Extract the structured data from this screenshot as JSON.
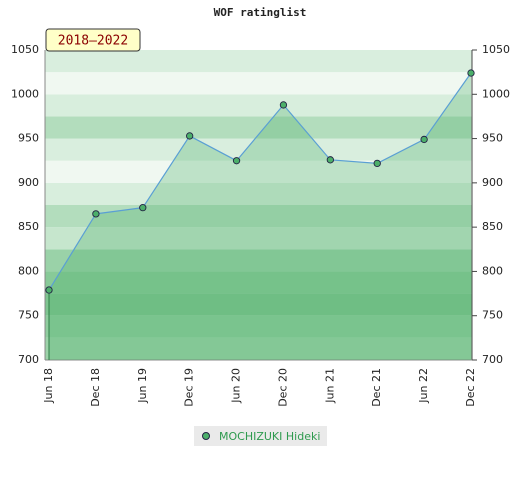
{
  "chart_data": {
    "type": "line",
    "title": "WOF ratinglist",
    "badge": "2018–2022",
    "categories": [
      "Jun 18",
      "Dec 18",
      "Jun 19",
      "Dec 19",
      "Jun 20",
      "Dec 20",
      "Jun 21",
      "Dec 21",
      "Jun 22",
      "Dec 22"
    ],
    "series": [
      {
        "name": "MOCHIZUKI Hideki",
        "color": "#5a9fd4",
        "values": [
          779,
          865,
          872,
          953,
          925,
          988,
          926,
          922,
          949,
          1024
        ]
      }
    ],
    "ylim": [
      700,
      1050
    ],
    "yticks": [
      700,
      750,
      800,
      850,
      900,
      950,
      1000,
      1050
    ]
  }
}
